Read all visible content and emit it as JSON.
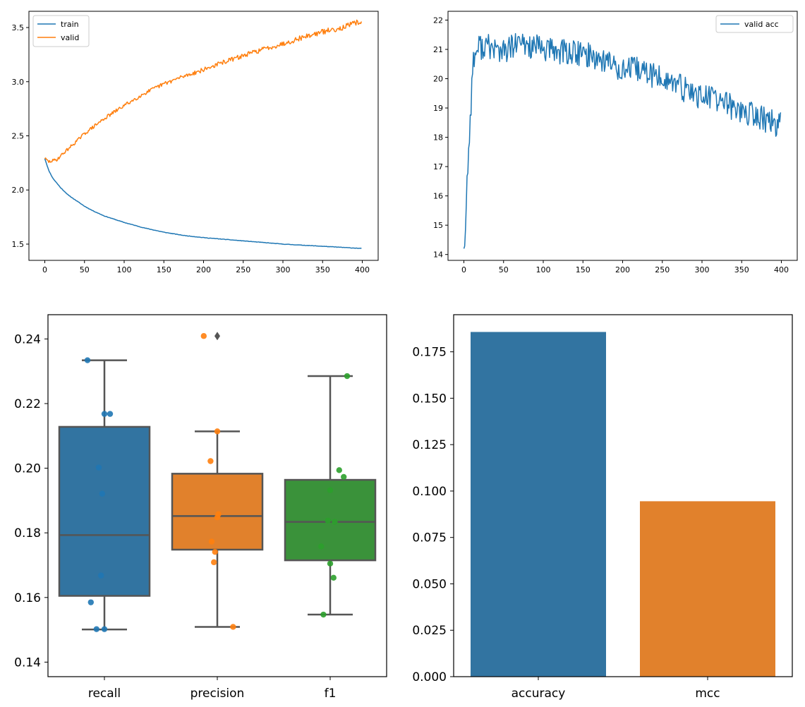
{
  "colors": {
    "blue": "#1f77b4",
    "orange": "#ff7f0e",
    "green": "#2ca02c",
    "box_blue": "#3274a1",
    "box_orange": "#e1812c",
    "box_green": "#3a923a",
    "whisker": "#555555",
    "frame": "#000000"
  },
  "chart_data": [
    {
      "type": "line",
      "xlim": [
        -20,
        420
      ],
      "ylim": [
        1.35,
        3.65
      ],
      "xticks": [
        0,
        50,
        100,
        150,
        200,
        250,
        300,
        350,
        400
      ],
      "yticks": [
        1.5,
        2.0,
        2.5,
        3.0,
        3.5
      ],
      "grid": false,
      "legend_position": "top-left",
      "x_range": [
        0,
        399
      ],
      "series": [
        {
          "name": "train",
          "color": "#1f77b4",
          "points": [
            [
              0,
              2.29
            ],
            [
              5,
              2.18
            ],
            [
              10,
              2.11
            ],
            [
              20,
              2.02
            ],
            [
              30,
              1.95
            ],
            [
              40,
              1.9
            ],
            [
              50,
              1.85
            ],
            [
              60,
              1.81
            ],
            [
              75,
              1.76
            ],
            [
              100,
              1.7
            ],
            [
              125,
              1.65
            ],
            [
              150,
              1.61
            ],
            [
              175,
              1.58
            ],
            [
              200,
              1.56
            ],
            [
              250,
              1.53
            ],
            [
              300,
              1.5
            ],
            [
              350,
              1.48
            ],
            [
              399,
              1.46
            ]
          ]
        },
        {
          "name": "valid",
          "color": "#ff7f0e",
          "points": [
            [
              0,
              2.29
            ],
            [
              5,
              2.26
            ],
            [
              15,
              2.28
            ],
            [
              25,
              2.35
            ],
            [
              40,
              2.45
            ],
            [
              50,
              2.52
            ],
            [
              75,
              2.66
            ],
            [
              100,
              2.78
            ],
            [
              125,
              2.89
            ],
            [
              150,
              2.98
            ],
            [
              175,
              3.05
            ],
            [
              200,
              3.11
            ],
            [
              225,
              3.18
            ],
            [
              250,
              3.24
            ],
            [
              275,
              3.3
            ],
            [
              300,
              3.35
            ],
            [
              325,
              3.41
            ],
            [
              350,
              3.46
            ],
            [
              375,
              3.5
            ],
            [
              399,
              3.56
            ]
          ]
        }
      ]
    },
    {
      "type": "line",
      "xlim": [
        -20,
        420
      ],
      "ylim": [
        13.8,
        22.3
      ],
      "xticks": [
        0,
        50,
        100,
        150,
        200,
        250,
        300,
        350,
        400
      ],
      "yticks": [
        14,
        15,
        16,
        17,
        18,
        19,
        20,
        21,
        22
      ],
      "grid": false,
      "legend_position": "top-right",
      "x_range": [
        0,
        399
      ],
      "series": [
        {
          "name": "valid acc",
          "color": "#1f77b4",
          "points": [
            [
              0,
              14.2
            ],
            [
              2,
              14.8
            ],
            [
              4,
              16.5
            ],
            [
              6,
              17.6
            ],
            [
              8,
              18.6
            ],
            [
              10,
              19.8
            ],
            [
              12,
              20.6
            ],
            [
              15,
              20.9
            ],
            [
              20,
              21.1
            ],
            [
              30,
              21.1
            ],
            [
              50,
              20.9
            ],
            [
              70,
              21.2
            ],
            [
              100,
              21.0
            ],
            [
              130,
              20.9
            ],
            [
              160,
              20.8
            ],
            [
              180,
              20.6
            ],
            [
              200,
              20.3
            ],
            [
              220,
              20.3
            ],
            [
              240,
              20.1
            ],
            [
              260,
              19.9
            ],
            [
              280,
              19.6
            ],
            [
              300,
              19.4
            ],
            [
              320,
              19.3
            ],
            [
              340,
              19.0
            ],
            [
              360,
              18.8
            ],
            [
              380,
              18.6
            ],
            [
              399,
              18.4
            ]
          ],
          "noise": 0.45
        }
      ]
    },
    {
      "type": "box",
      "categories": [
        "recall",
        "precision",
        "f1"
      ],
      "ylim": [
        0.1355,
        0.2475
      ],
      "yticks": [
        0.14,
        0.16,
        0.18,
        0.2,
        0.22,
        0.24
      ],
      "grid": false,
      "boxes": [
        {
          "category": "recall",
          "q1": 0.1605,
          "median": 0.1793,
          "q3": 0.2128,
          "whisker_low": 0.1501,
          "whisker_high": 0.2334,
          "outliers": [],
          "fill": "#3274a1",
          "point_color": "#1f77b4",
          "points": [
            [
              -0.15,
              0.2334
            ],
            [
              0.0,
              0.2168
            ],
            [
              0.05,
              0.2168
            ],
            [
              -0.05,
              0.2002
            ],
            [
              -0.02,
              0.1921
            ],
            [
              -0.03,
              0.1668
            ],
            [
              -0.12,
              0.1585
            ],
            [
              -0.07,
              0.1502
            ],
            [
              0.0,
              0.1502
            ]
          ]
        },
        {
          "category": "precision",
          "q1": 0.1748,
          "median": 0.1852,
          "q3": 0.1983,
          "whisker_low": 0.1509,
          "whisker_high": 0.2114,
          "outliers": [
            0.2409
          ],
          "fill": "#e1812c",
          "point_color": "#ff7f0e",
          "points": [
            [
              -0.12,
              0.2409
            ],
            [
              0.0,
              0.2114
            ],
            [
              -0.06,
              0.2022
            ],
            [
              0.01,
              0.1858
            ],
            [
              0.0,
              0.1848
            ],
            [
              -0.05,
              0.1773
            ],
            [
              -0.02,
              0.1741
            ],
            [
              -0.03,
              0.1709
            ],
            [
              0.14,
              0.1509
            ]
          ]
        },
        {
          "category": "f1",
          "q1": 0.1715,
          "median": 0.1834,
          "q3": 0.1964,
          "whisker_low": 0.1547,
          "whisker_high": 0.2285,
          "outliers": [],
          "fill": "#3a923a",
          "point_color": "#2ca02c",
          "points": [
            [
              0.15,
              0.2285
            ],
            [
              0.08,
              0.1994
            ],
            [
              0.12,
              0.1973
            ],
            [
              0.0,
              0.1932
            ],
            [
              -0.02,
              0.1838
            ],
            [
              0.04,
              0.1834
            ],
            [
              -0.08,
              0.1758
            ],
            [
              0.0,
              0.1705
            ],
            [
              0.03,
              0.1661
            ],
            [
              -0.06,
              0.1547
            ]
          ]
        }
      ]
    },
    {
      "type": "bar",
      "categories": [
        "accuracy",
        "mcc"
      ],
      "values": [
        0.1857,
        0.0945
      ],
      "colors": [
        "#3274a1",
        "#e1812c"
      ],
      "ylim": [
        0.0,
        0.195
      ],
      "yticks": [
        0.0,
        0.025,
        0.05,
        0.075,
        0.1,
        0.125,
        0.15,
        0.175
      ],
      "ytick_labels": [
        "0.000",
        "0.025",
        "0.050",
        "0.075",
        "0.100",
        "0.125",
        "0.150",
        "0.175"
      ],
      "grid": false
    }
  ]
}
